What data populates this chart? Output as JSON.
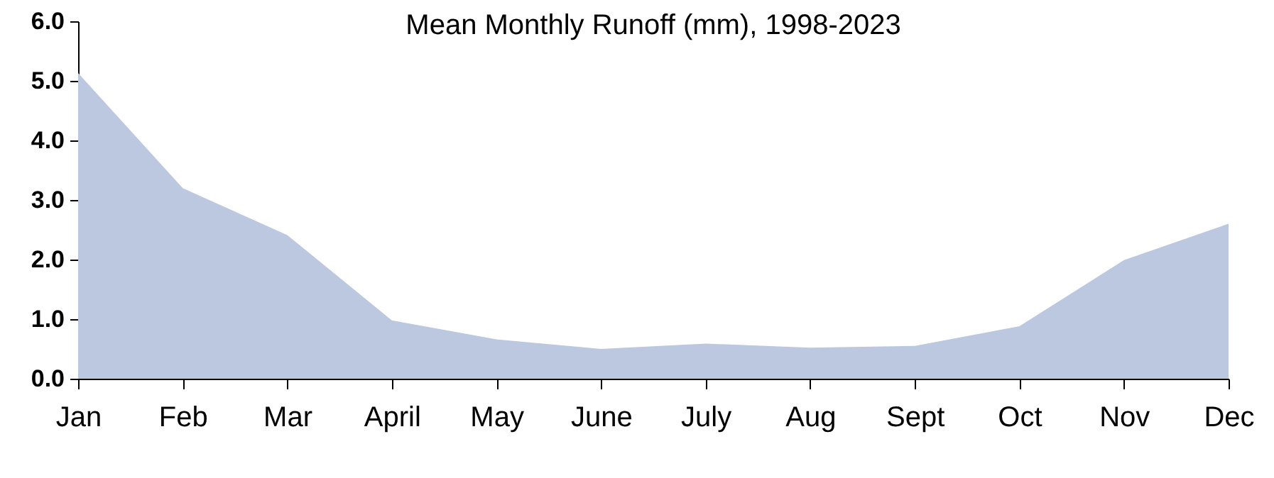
{
  "chart_data": {
    "type": "area",
    "title": "Mean Monthly Runoff (mm), 1998-2023",
    "categories": [
      "Jan",
      "Feb",
      "Mar",
      "April",
      "May",
      "June",
      "July",
      "Aug",
      "Sept",
      "Oct",
      "Nov",
      "Dec"
    ],
    "series": [
      {
        "color": "#bcc8e0",
        "values": [
          5.13,
          3.2,
          2.41,
          0.98,
          0.66,
          0.5,
          0.59,
          0.52,
          0.55,
          0.88,
          1.99,
          2.6
        ]
      }
    ],
    "ylim": [
      0,
      6
    ],
    "yticks": [
      {
        "value": 0,
        "label": "0.0"
      },
      {
        "value": 1,
        "label": "1.0"
      },
      {
        "value": 2,
        "label": "2.0"
      },
      {
        "value": 3,
        "label": "3.0"
      },
      {
        "value": 4,
        "label": "4.0"
      },
      {
        "value": 5,
        "label": "5.0"
      },
      {
        "value": 6,
        "label": "6.0"
      }
    ],
    "grid": false
  }
}
